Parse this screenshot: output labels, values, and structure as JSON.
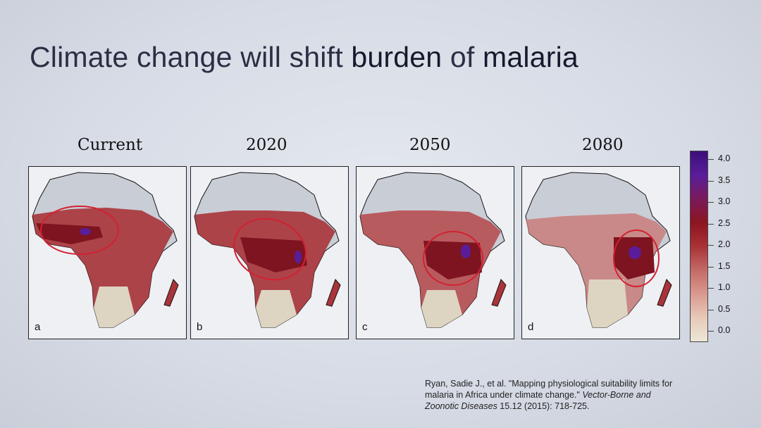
{
  "slide": {
    "title_part1": "Climate change will shift ",
    "title_bold1": "burden",
    "title_part2": " of ",
    "title_bold2": "malaria"
  },
  "maps": [
    {
      "label": "Current",
      "letter": "a"
    },
    {
      "label": "2020",
      "letter": "b"
    },
    {
      "label": "2050",
      "letter": "c"
    },
    {
      "label": "2080",
      "letter": "d"
    }
  ],
  "legend": {
    "ticks": [
      "4.0",
      "3.5",
      "3.0",
      "2.5",
      "2.0",
      "1.5",
      "1.0",
      "0.5",
      "0.0"
    ],
    "colors": [
      "#ece7d6",
      "#e7c9b8",
      "#d9998f",
      "#c46a66",
      "#a83236",
      "#8d1520",
      "#7a1a5a",
      "#5a1d9a",
      "#3b0f7a"
    ]
  },
  "citation": {
    "line1": "Ryan, Sadie J., et al. \"Mapping physiological suitability limits for",
    "line2": "malaria in Africa under climate change.\" ",
    "journal_a": "Vector-Borne and",
    "journal_b": "Zoonotic Diseases",
    "tail": " 15.12 (2015): 718-725."
  }
}
